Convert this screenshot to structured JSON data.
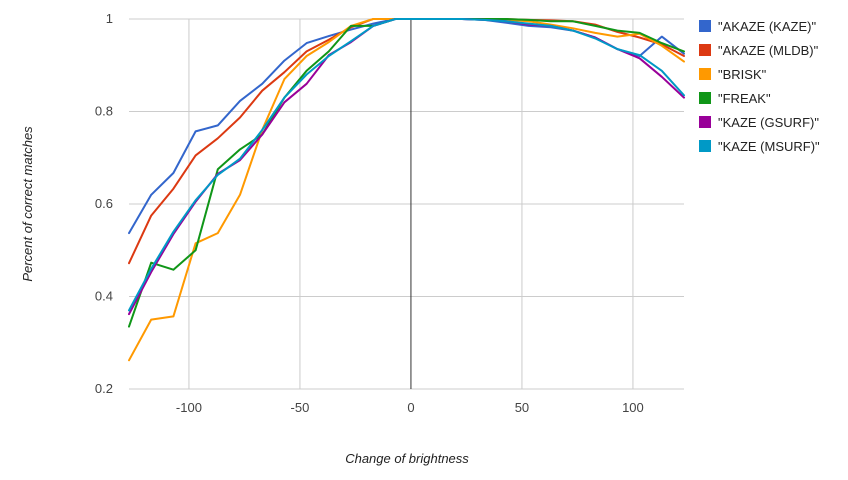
{
  "chart_data": {
    "type": "line",
    "title": "",
    "xlabel": "Change of brightness",
    "ylabel": "Percent of correct matches",
    "xlim": [
      -127,
      123
    ],
    "ylim": [
      0.2,
      1.0
    ],
    "x_ticks": [
      -100,
      -50,
      0,
      50,
      100
    ],
    "y_ticks": [
      0.2,
      0.4,
      0.6,
      0.8,
      1.0
    ],
    "x_tick_labels": [
      "-100",
      "-50",
      "0",
      "50",
      "100"
    ],
    "y_tick_labels": [
      "0.2",
      "0.4",
      "0.6",
      "0.8",
      "1"
    ],
    "grid": true,
    "legend_position": "right",
    "x": [
      -127,
      -117,
      -107,
      -97,
      -87,
      -77,
      -67,
      -57,
      -47,
      -37,
      -27,
      -17,
      -7,
      3,
      13,
      23,
      33,
      43,
      53,
      63,
      73,
      83,
      93,
      103,
      113,
      123
    ],
    "series": [
      {
        "name": "\"AKAZE (KAZE)\"",
        "color": "#3366cc",
        "values": [
          0.537,
          0.62,
          0.667,
          0.757,
          0.77,
          0.823,
          0.86,
          0.91,
          0.948,
          0.963,
          0.977,
          0.99,
          1.0,
          1.0,
          1.0,
          1.0,
          0.998,
          0.992,
          0.985,
          0.982,
          0.975,
          0.96,
          0.935,
          0.92,
          0.962,
          0.925
        ]
      },
      {
        "name": "\"AKAZE (MLDB)\"",
        "color": "#dc3912",
        "values": [
          0.472,
          0.575,
          0.633,
          0.705,
          0.742,
          0.787,
          0.845,
          0.885,
          0.93,
          0.955,
          0.982,
          1.0,
          1.0,
          1.0,
          1.0,
          1.0,
          1.0,
          1.0,
          0.998,
          0.997,
          0.995,
          0.988,
          0.972,
          0.96,
          0.945,
          0.92
        ]
      },
      {
        "name": "\"BRISK\"",
        "color": "#ff9900",
        "values": [
          0.262,
          0.35,
          0.357,
          0.515,
          0.537,
          0.62,
          0.76,
          0.87,
          0.92,
          0.95,
          0.985,
          1.0,
          1.0,
          1.0,
          1.0,
          1.0,
          1.0,
          0.998,
          0.995,
          0.988,
          0.98,
          0.97,
          0.962,
          0.968,
          0.942,
          0.908
        ]
      },
      {
        "name": "\"FREAK\"",
        "color": "#109618",
        "values": [
          0.335,
          0.473,
          0.458,
          0.5,
          0.675,
          0.718,
          0.75,
          0.83,
          0.888,
          0.93,
          0.985,
          0.985,
          1.0,
          1.0,
          1.0,
          1.0,
          1.0,
          1.0,
          0.998,
          0.995,
          0.995,
          0.985,
          0.975,
          0.97,
          0.948,
          0.93
        ]
      },
      {
        "name": "\"KAZE (GSURF)\"",
        "color": "#990099",
        "values": [
          0.362,
          0.453,
          0.535,
          0.605,
          0.665,
          0.695,
          0.75,
          0.82,
          0.86,
          0.922,
          0.95,
          0.985,
          1.0,
          1.0,
          1.0,
          1.0,
          0.998,
          0.995,
          0.988,
          0.985,
          0.975,
          0.96,
          0.935,
          0.915,
          0.875,
          0.83
        ]
      },
      {
        "name": "\"KAZE (MSURF)\"",
        "color": "#0099c6",
        "values": [
          0.37,
          0.46,
          0.54,
          0.608,
          0.663,
          0.698,
          0.76,
          0.83,
          0.88,
          0.92,
          0.952,
          0.985,
          1.0,
          1.0,
          1.0,
          1.0,
          0.998,
          0.995,
          0.99,
          0.985,
          0.975,
          0.958,
          0.935,
          0.922,
          0.888,
          0.835
        ]
      }
    ]
  }
}
